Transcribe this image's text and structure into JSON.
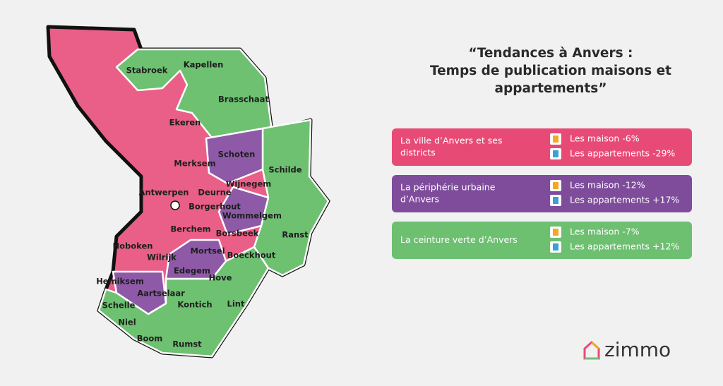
{
  "title": [
    "“Tendances à Anvers :",
    "Temps de publication maisons et",
    "appartements”"
  ],
  "map": {
    "labels": [
      "Stabroek",
      "Kapellen",
      "Brasschaat",
      "Ekeren",
      "Schoten",
      "Merksem",
      "Schilde",
      "Antwerpen",
      "Deurne",
      "Wijnegem",
      "Borgerhout",
      "Wommelgem",
      "Berchem",
      "Borsbeek",
      "Ranst",
      "Hoboken",
      "Mortsel",
      "Boeckhout",
      "Wilrijk",
      "Edegem",
      "Hemiksem",
      "Hove",
      "Aartselaar",
      "Schelle",
      "Kontich",
      "Lint",
      "Niel",
      "Boom",
      "Rumst"
    ]
  },
  "cards": [
    {
      "region": [
        "La ville d’Anvers et ses",
        "districts"
      ],
      "rows": [
        "Les maison -6%",
        "Les appartements -29%"
      ]
    },
    {
      "region": [
        "La périphérie urbaine",
        "d’Anvers"
      ],
      "rows": [
        "Les maison -12%",
        "Les appartements +17%"
      ]
    },
    {
      "region": [
        "La ceinture verte d’Anvers"
      ],
      "rows": [
        "Les maison -7%",
        "Les appartements +12%"
      ]
    }
  ],
  "logo": "zimmo"
}
